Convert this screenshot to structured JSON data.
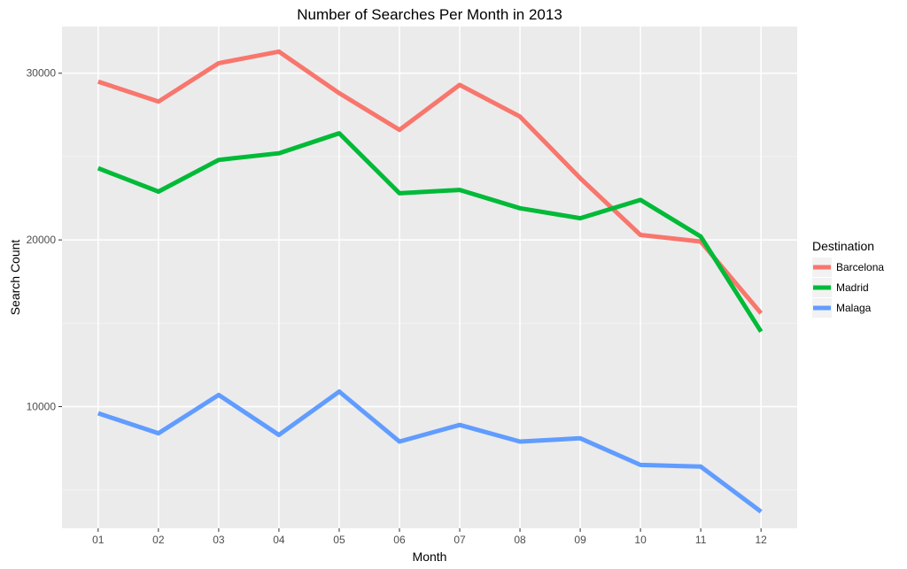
{
  "chart_data": {
    "type": "line",
    "title": "Number of Searches Per Month in 2013",
    "xlabel": "Month",
    "ylabel": "Search Count",
    "categories": [
      "01",
      "02",
      "03",
      "04",
      "05",
      "06",
      "07",
      "08",
      "09",
      "10",
      "11",
      "12"
    ],
    "y_ticks": [
      10000,
      20000,
      30000
    ],
    "y_tick_labels": [
      "10000",
      "20000",
      "30000"
    ],
    "ylim": [
      2700,
      32800
    ],
    "grid": true,
    "legend": {
      "title": "Destination",
      "position": "right"
    },
    "series": [
      {
        "name": "Barcelona",
        "color": "#f8766d",
        "values": [
          29500,
          28300,
          30600,
          31300,
          28800,
          26600,
          29300,
          27400,
          23700,
          20300,
          19900,
          15600
        ]
      },
      {
        "name": "Madrid",
        "color": "#00ba38",
        "values": [
          24300,
          22900,
          24800,
          25200,
          26400,
          22800,
          23000,
          21900,
          21300,
          22400,
          20200,
          14500
        ]
      },
      {
        "name": "Malaga",
        "color": "#619cff",
        "values": [
          9600,
          8400,
          10700,
          8300,
          10900,
          7900,
          8900,
          7900,
          8100,
          6500,
          6400,
          3700
        ]
      }
    ]
  }
}
